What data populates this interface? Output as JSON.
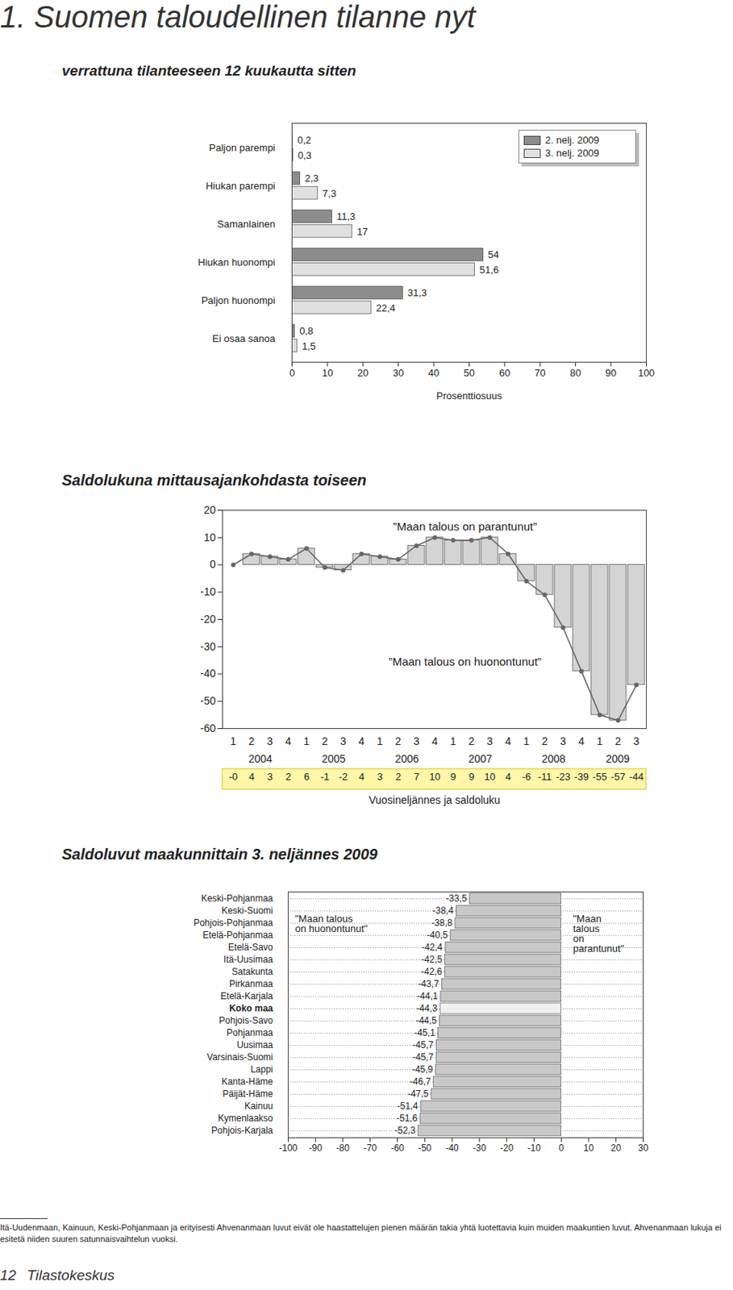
{
  "page_title": "1.  Suomen taloudellinen tilanne nyt",
  "chart_data": [
    {
      "type": "bar",
      "orientation": "horizontal",
      "title": "verrattuna tilanteeseen 12 kuukautta sitten",
      "categories": [
        "Paljon parempi",
        "Hiukan parempi",
        "Samanlainen",
        "Hiukan huonompi",
        "Paljon huonompi",
        "Ei osaa sanoa"
      ],
      "series": [
        {
          "name": "2. nelj. 2009",
          "color": "#8c8c8c",
          "values": [
            0.2,
            2.3,
            11.3,
            54,
            31.3,
            0.8
          ],
          "value_labels": [
            "0,2",
            "2,3",
            "11,3",
            "54",
            "31,3",
            "0,8"
          ]
        },
        {
          "name": "3. nelj. 2009",
          "color": "#e0e0e0",
          "values": [
            0.3,
            7.3,
            17,
            51.6,
            22.4,
            1.5
          ],
          "value_labels": [
            "0,3",
            "7,3",
            "17",
            "51,6",
            "22,4",
            "1,5"
          ]
        }
      ],
      "xlim": [
        0,
        100
      ],
      "xticks": [
        0,
        10,
        20,
        30,
        40,
        50,
        60,
        70,
        80,
        90,
        100
      ],
      "xlabel": "Prosenttiosuus",
      "data_labels": true,
      "legend": "top-right",
      "grid": false
    },
    {
      "type": "bar",
      "title": "Saldolukuna mittausajankohdasta toiseen",
      "categories": [
        "1",
        "2",
        "3",
        "4",
        "1",
        "2",
        "3",
        "4",
        "1",
        "2",
        "3",
        "4",
        "1",
        "2",
        "3",
        "4",
        "1",
        "2",
        "3",
        "4",
        "1",
        "2",
        "3"
      ],
      "years": [
        "2004",
        "2004",
        "2004",
        "2004",
        "2005",
        "2005",
        "2005",
        "2005",
        "2006",
        "2006",
        "2006",
        "2006",
        "2007",
        "2007",
        "2007",
        "2007",
        "2008",
        "2008",
        "2008",
        "2008",
        "2009",
        "2009",
        "2009"
      ],
      "series": [
        {
          "type": "bar",
          "color": "#d4d4d4",
          "values": [
            0,
            4,
            3,
            2,
            6,
            -1,
            -2,
            4,
            3,
            2,
            7,
            10,
            9,
            9,
            10,
            4,
            -6,
            -11,
            -23,
            -39,
            -55,
            -57,
            -44
          ],
          "value_labels": [
            "-0",
            "4",
            "3",
            "2",
            "6",
            "-1",
            "-2",
            "4",
            "3",
            "2",
            "7",
            "10",
            "9",
            "9",
            "10",
            "4",
            "-6",
            "-11",
            "-23",
            "-39",
            "-55",
            "-57",
            "-44"
          ]
        },
        {
          "type": "line",
          "color": "#666666",
          "marker": "circle",
          "values": [
            0,
            4,
            3,
            2,
            6,
            -1,
            -2,
            4,
            3,
            2,
            7,
            10,
            9,
            9,
            10,
            4,
            -6,
            -11,
            -23,
            -39,
            -55,
            -57,
            -44
          ]
        }
      ],
      "ylim": [
        -60,
        20
      ],
      "yticks": [
        -60,
        -50,
        -40,
        -30,
        -20,
        -10,
        0,
        10,
        20
      ],
      "xlabel": "Vuosineljännes ja saldoluku",
      "annotations": [
        "”Maan talous on parantunut”",
        "”Maan talous on huonontunut”"
      ],
      "data_labels": true,
      "grid": false
    },
    {
      "type": "bar",
      "orientation": "horizontal",
      "title": "Saldoluvut maakunnittain 3. neljännes 2009",
      "categories": [
        "Keski-Pohjanmaa",
        "Keski-Suomi",
        "Pohjois-Pohjanmaa",
        "Etelä-Pohjanmaa",
        "Etelä-Savo",
        "Itä-Uusimaa",
        "Satakunta",
        "Pirkanmaa",
        "Etelä-Karjala",
        "Koko maa",
        "Pohjois-Savo",
        "Pohjanmaa",
        "Uusimaa",
        "Varsinais-Suomi",
        "Lappi",
        "Kanta-Häme",
        "Päijät-Häme",
        "Kainuu",
        "Kymenlaakso",
        "Pohjois-Karjala"
      ],
      "values": [
        -33.5,
        -38.4,
        -38.8,
        -40.5,
        -42.4,
        -42.5,
        -42.6,
        -43.7,
        -44.1,
        -44.3,
        -44.5,
        -45.1,
        -45.7,
        -45.7,
        -45.9,
        -46.7,
        -47.5,
        -51.4,
        -51.6,
        -52.3
      ],
      "value_labels": [
        "-33,5",
        "-38,4",
        "-38,8",
        "-40,5",
        "-42,4",
        "-42,5",
        "-42,6",
        "-43,7",
        "-44,1",
        "-44,3",
        "-44,5",
        "-45,1",
        "-45,7",
        "-45,7",
        "-45,9",
        "-46,7",
        "-47,5",
        "-51,4",
        "-51,6",
        "-52,3"
      ],
      "colors": [
        "#c8c8c8",
        "#c8c8c8",
        "#c8c8c8",
        "#c8c8c8",
        "#c8c8c8",
        "#c8c8c8",
        "#c8c8c8",
        "#c8c8c8",
        "#c8c8c8",
        "#f0f0f0",
        "#c8c8c8",
        "#c8c8c8",
        "#c8c8c8",
        "#c8c8c8",
        "#c8c8c8",
        "#c8c8c8",
        "#c8c8c8",
        "#c8c8c8",
        "#c8c8c8",
        "#c8c8c8"
      ],
      "highlight": "Koko maa",
      "xlim": [
        -100,
        30
      ],
      "xticks": [
        -100,
        -90,
        -80,
        -70,
        -60,
        -50,
        -40,
        -30,
        -20,
        -10,
        0,
        10,
        20,
        30
      ],
      "annotations": [
        "\"Maan talous\non huonontunut\"",
        "\"Maan\ntalous\non\nparantunut\""
      ],
      "data_labels": true,
      "grid": true
    }
  ],
  "footnote": "Itä-Uudenmaan, Kainuun, Keski-Pohjanmaan ja erityisesti Ahvenanmaan luvut eivät ole haastattelujen pienen määrän takia yhtä luotettavia kuin muiden maakuntien luvut. Ahvenanmaan lukuja ei esitetä niiden suuren satunnaisvaihtelun vuoksi.",
  "page_number": "12",
  "publisher": "Tilastokeskus"
}
